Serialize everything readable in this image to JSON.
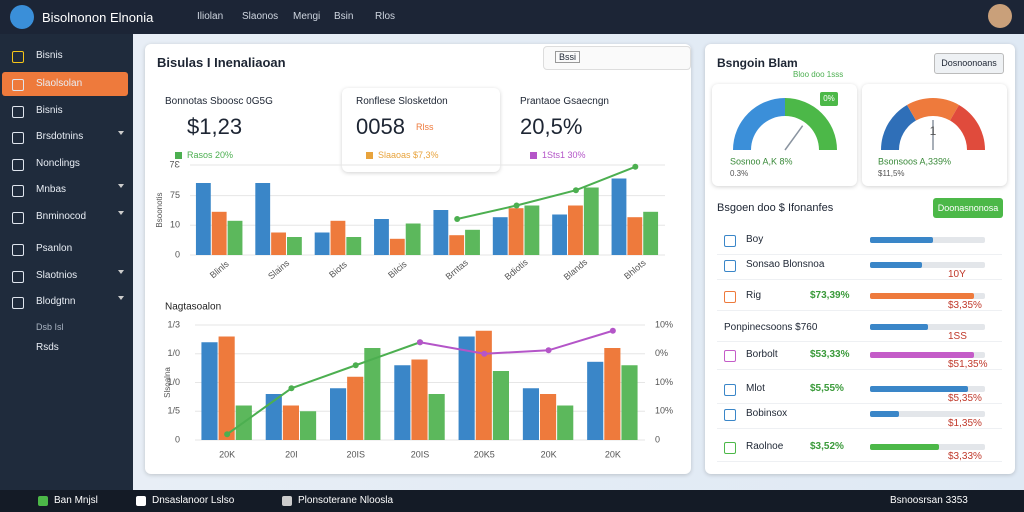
{
  "topbar": {
    "app_name": "Bisolnonon Elnonia",
    "nav": [
      "Iliolan",
      "Slaonos",
      "Mengi",
      "Bsin",
      "Rlos"
    ]
  },
  "sidebar": {
    "items": [
      {
        "label": "Bisnis"
      },
      {
        "label": "Slaolsolan",
        "active": true
      },
      {
        "label": "Bisnis"
      },
      {
        "label": "Brsdotnins",
        "expandable": true
      },
      {
        "label": "Nonclings"
      },
      {
        "label": "Mnbas",
        "expandable": true
      },
      {
        "label": "Bnminocod",
        "expandable": true
      },
      {
        "label": "Psanlon"
      },
      {
        "label": "Slaotnios",
        "expandable": true
      },
      {
        "label": "Blodgtnn",
        "expandable": true
      }
    ],
    "section": "Dsb Isl",
    "footer_item": "Rsds"
  },
  "main_panel": {
    "title": "Bisulas I Inenaliaoan",
    "toolbar": "Bssi"
  },
  "kpis": [
    {
      "label": "Bonnotas Sboosc 0G5G",
      "value": "$1,23",
      "delta": "Rasos 20%",
      "color": "#4caf50"
    },
    {
      "label": "Ronflese Slosketdon",
      "value": "0058",
      "unit": "Rlss",
      "delta": "Slaaoas $7,3%",
      "color": "#e8a33c"
    },
    {
      "label": "Prantaoe Gsaecngn",
      "value": "20,5%",
      "delta": "1Sts1 30%",
      "color": "#b455c8"
    }
  ],
  "chart_data": [
    {
      "type": "bar",
      "ylabel": "Bsoonotis",
      "categories": [
        "Blinls",
        "Slains",
        "Biots",
        "Bilcis",
        "Brntas",
        "Bdiotis",
        "Blands",
        "Bhlots"
      ],
      "series": [
        {
          "color": "#3a86c8",
          "values": [
            80,
            80,
            25,
            40,
            50,
            42,
            45,
            85
          ]
        },
        {
          "color": "#ee7a3c",
          "values": [
            48,
            25,
            38,
            18,
            22,
            52,
            55,
            42
          ]
        },
        {
          "color": "#5cb85c",
          "values": [
            38,
            20,
            20,
            35,
            28,
            55,
            75,
            48
          ]
        },
        {
          "type": "line",
          "color": "#4caf50",
          "values": [
            null,
            null,
            null,
            null,
            40,
            55,
            72,
            98
          ]
        }
      ],
      "ylim": [
        0,
        100
      ],
      "yticks": [
        0,
        {
          "value": 33,
          "label": "10"
        },
        {
          "value": 66,
          "label": "75"
        },
        {
          "value": 100,
          "label": "7Ɛ"
        }
      ],
      "grid": true
    },
    {
      "type": "bar",
      "title": "Nagtasoalon",
      "ylabel": "Slsoalna",
      "categories": [
        "20K",
        "20I",
        "20IS",
        "20IS",
        "20K5",
        "20K",
        "20K"
      ],
      "series": [
        {
          "color": "#3a86c8",
          "values": [
            85,
            40,
            45,
            65,
            90,
            45,
            68
          ]
        },
        {
          "color": "#ee7a3c",
          "values": [
            90,
            30,
            55,
            70,
            95,
            40,
            80
          ]
        },
        {
          "color": "#5cb85c",
          "values": [
            30,
            25,
            80,
            40,
            60,
            30,
            65
          ]
        },
        {
          "type": "line",
          "color": "#4caf50",
          "values": [
            5,
            45,
            65,
            85,
            null,
            null,
            null
          ]
        },
        {
          "type": "line",
          "color": "#b455c8",
          "values": [
            null,
            null,
            null,
            85,
            75,
            78,
            95
          ]
        }
      ],
      "ylim": [
        0,
        100
      ],
      "yticks": [
        0,
        {
          "value": 25,
          "label": "1/5"
        },
        {
          "value": 50,
          "label": "1/0"
        },
        {
          "value": 75,
          "label": "1/0"
        },
        {
          "value": 100,
          "label": "1/3"
        }
      ],
      "y2lim": [
        0,
        100
      ],
      "y2ticks": [
        0,
        {
          "value": 25,
          "label": "10%"
        },
        {
          "value": 50,
          "label": "10%"
        },
        {
          "value": 75,
          "label": "0%"
        },
        {
          "value": 100,
          "label": "10%"
        }
      ],
      "grid": true
    }
  ],
  "right_panel": {
    "title": "Bsngoin Blam",
    "subtitle": "Bloo doo 1sss",
    "button": "Dosnoonoans"
  },
  "gauges": [
    {
      "label": "Sosnoo A,K 8%",
      "sub": "0.3%",
      "value": 70,
      "badge": "0%",
      "colors": [
        "#3b8fd9",
        "#4cb848"
      ]
    },
    {
      "label": "Bsonsoos A,339%",
      "sub": "$11,5%",
      "value": 50,
      "center": "1",
      "colors": [
        "#2f6fb8",
        "#ee7a3c",
        "#e04b3c"
      ]
    }
  ],
  "list": {
    "title": "Bsgoen doo $ Ifonanfes",
    "button": "Doonasnonosa",
    "section": "Ponpinecsoons $760",
    "rows": [
      {
        "label": "Boy",
        "bar": 55,
        "color": "#3a86c8"
      },
      {
        "label": "Sonsao Blonsnoa",
        "bar": 45,
        "right": "10Y",
        "color": "#3a86c8"
      },
      {
        "label": "Rig",
        "value": "$73,39%",
        "bar": 90,
        "right": "$3,35%",
        "color": "#ee7a3c"
      },
      {
        "bar": 50,
        "right": "1SS",
        "color": "#3a86c8"
      },
      {
        "label": "Borbolt",
        "value": "$53,33%",
        "bar": 90,
        "right": "$51,35%",
        "color": "#c45cc8"
      },
      {
        "label": "Mlot",
        "value": "$5,55%",
        "bar": 85,
        "right": "$5,35%",
        "color": "#3a86c8"
      },
      {
        "label": "Bobinsox",
        "bar": 25,
        "right": "$1,35%",
        "color": "#3a86c8"
      },
      {
        "label": "Raolnoe",
        "value": "$3,52%",
        "bar": 60,
        "right": "$3,33%",
        "color": "#4cb848"
      }
    ]
  },
  "taskbar": {
    "items": [
      "Ban Mnjsl",
      "Dnsaslanoor Lslso",
      "Plonsoterane Nloosla"
    ],
    "status": "Bsnoosrsan 3353"
  }
}
